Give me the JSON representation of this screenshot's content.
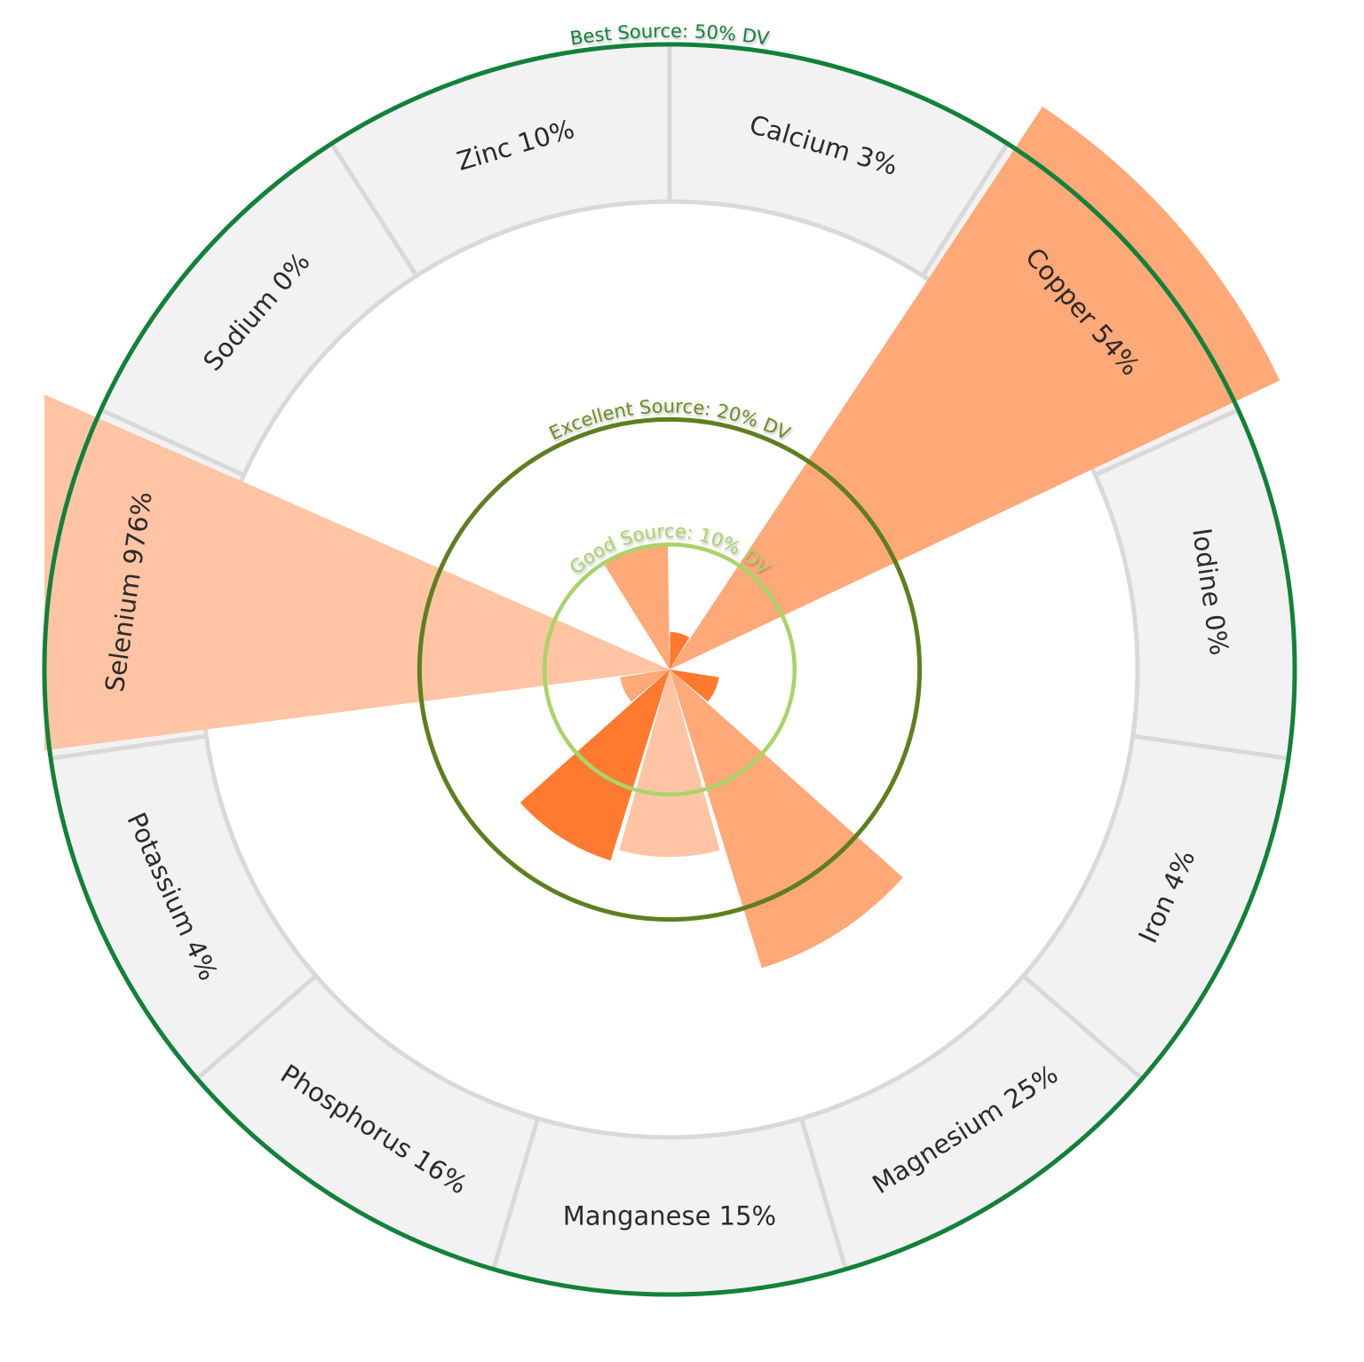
{
  "chart_data": {
    "type": "radial-bar",
    "unit": "% DV",
    "categories": [
      "Calcium",
      "Copper",
      "Iodine",
      "Iron",
      "Magnesium",
      "Manganese",
      "Phosphorus",
      "Potassium",
      "Selenium",
      "Sodium",
      "Zinc"
    ],
    "values": [
      3,
      54,
      0,
      4,
      25,
      15,
      16,
      4,
      976,
      0,
      10
    ],
    "labels": [
      "Calcium 3%",
      "Copper 54%",
      "Iodine 0%",
      "Iron 4%",
      "Magnesium 25%",
      "Manganese 15%",
      "Phosphorus 16%",
      "Potassium 4%",
      "Selenium 976%",
      "Sodium 0%",
      "Zinc 10%"
    ],
    "bar_colors": [
      "#ff7a2e",
      "#ffa878",
      "#ffa878",
      "#ff7a2e",
      "#ffa878",
      "#ffc4a3",
      "#ff7a2e",
      "#ffa878",
      "#ffc4a3",
      "#ffa878",
      "#ffa878"
    ],
    "radial_max": 50,
    "thresholds": [
      {
        "label": "Good Source: 10% DV",
        "value": 10,
        "color": "#a8d468",
        "text_color": "#a8d468"
      },
      {
        "label": "Excellent Source: 20% DV",
        "value": 20,
        "color": "#5f7f1f",
        "text_color": "#6e8c22"
      },
      {
        "label": "Best Source: 50% DV",
        "value": 50,
        "color": "#12813a",
        "text_color": "#12813a"
      }
    ],
    "colors": {
      "ring_fill": "#f2f2f2",
      "ring_stroke": "#d9d9d9"
    }
  }
}
